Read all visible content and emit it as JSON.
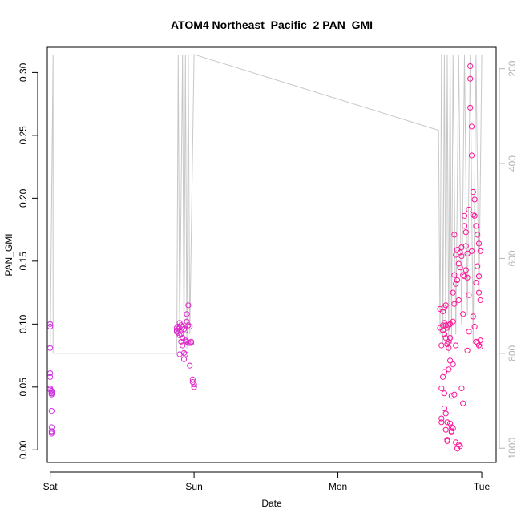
{
  "chart_data": {
    "type": "scatter",
    "title": "ATOM4 Northeast_Pacific_2 PAN_GMI",
    "xlabel": "Date",
    "ylabel": "PAN_GMI",
    "x_ticks": [
      "Sat",
      "Sun",
      "Mon",
      "Tue"
    ],
    "xlim_days": [
      -0.02,
      3.1
    ],
    "ylim": [
      -0.01,
      0.32
    ],
    "y_ticks": [
      0.0,
      0.05,
      0.1,
      0.15,
      0.2,
      0.25,
      0.3
    ],
    "y_tick_labels": [
      "0.00",
      "0.05",
      "0.10",
      "0.15",
      "0.20",
      "0.25",
      "0.30"
    ],
    "y2_ticks": [
      200,
      400,
      600,
      800,
      1000
    ],
    "y2_tick_labels": [
      "200",
      "400",
      "600",
      "800",
      "1000"
    ],
    "y2lim": [
      1030,
      155
    ],
    "grid": false,
    "colors": {
      "points_start": "#cc33dd",
      "points_end": "#ff1493",
      "pressure_line": "#c8c8c8",
      "axis": "#000000",
      "right_axis": "#b3b3b3"
    },
    "series": [
      {
        "values_x_days": [
          0.0,
          0.0,
          0.0,
          0.0,
          0.0,
          0.0,
          0.0,
          0.01,
          0.01,
          0.01,
          0.01,
          0.01,
          0.01,
          0.01,
          0.01,
          0.01,
          0.01,
          0.88,
          0.88,
          0.88,
          0.89,
          0.89,
          0.89,
          0.9,
          0.9,
          0.9,
          0.9,
          0.91,
          0.91,
          0.91,
          0.92,
          0.92,
          0.92,
          0.93,
          0.93,
          0.93,
          0.94,
          0.94,
          0.94,
          0.95,
          0.95,
          0.95,
          0.96,
          0.96,
          0.96,
          0.97,
          0.97,
          0.97,
          0.98,
          0.98,
          0.99,
          0.99,
          1.0,
          1.0
        ],
        "values_y": [
          0.1,
          0.098,
          0.081,
          0.061,
          0.058,
          0.049,
          0.048,
          0.047,
          0.046,
          0.045,
          0.045,
          0.044,
          0.031,
          0.018,
          0.015,
          0.013,
          0.014,
          0.097,
          0.095,
          0.094,
          0.098,
          0.096,
          0.093,
          0.101,
          0.097,
          0.091,
          0.076,
          0.099,
          0.092,
          0.086,
          0.098,
          0.089,
          0.083,
          0.096,
          0.077,
          0.072,
          0.095,
          0.087,
          0.076,
          0.108,
          0.102,
          0.086,
          0.115,
          0.099,
          0.085,
          0.098,
          0.085,
          0.067,
          0.085,
          0.086,
          0.056,
          0.054,
          0.052,
          0.05
        ]
      },
      {
        "values_x_days": [
          2.71,
          2.71,
          2.72,
          2.72,
          2.72,
          2.72,
          2.73,
          2.73,
          2.73,
          2.73,
          2.74,
          2.74,
          2.74,
          2.74,
          2.74,
          2.74,
          2.75,
          2.75,
          2.75,
          2.75,
          2.75,
          2.76,
          2.76,
          2.76,
          2.76,
          2.76,
          2.77,
          2.77,
          2.77,
          2.77,
          2.78,
          2.78,
          2.78,
          2.78,
          2.79,
          2.79,
          2.79,
          2.79,
          2.8,
          2.8,
          2.8,
          2.8,
          2.81,
          2.81,
          2.81,
          2.81,
          2.82,
          2.82,
          2.82,
          2.82,
          2.83,
          2.83,
          2.83,
          2.84,
          2.84,
          2.84,
          2.85,
          2.85,
          2.85,
          2.86,
          2.86,
          2.86,
          2.87,
          2.87,
          2.87,
          2.88,
          2.88,
          2.88,
          2.89,
          2.89,
          2.89,
          2.9,
          2.9,
          2.9,
          2.91,
          2.91,
          2.91,
          2.92,
          2.92,
          2.92,
          2.93,
          2.93,
          2.93,
          2.94,
          2.94,
          2.94,
          2.95,
          2.95,
          2.95,
          2.96,
          2.96,
          2.96,
          2.97,
          2.97,
          2.97,
          2.98,
          2.98,
          2.98,
          2.98,
          2.99,
          2.99,
          2.99,
          2.99
        ],
        "values_y": [
          0.112,
          0.097,
          0.083,
          0.049,
          0.025,
          0.022,
          0.11,
          0.099,
          0.095,
          0.058,
          0.113,
          0.101,
          0.092,
          0.062,
          0.045,
          0.033,
          0.115,
          0.099,
          0.089,
          0.029,
          0.016,
          0.097,
          0.084,
          0.022,
          0.008,
          0.007,
          0.099,
          0.086,
          0.081,
          0.064,
          0.1,
          0.089,
          0.071,
          0.021,
          0.043,
          0.018,
          0.014,
          0.015,
          0.125,
          0.102,
          0.068,
          0.017,
          0.171,
          0.139,
          0.116,
          0.044,
          0.155,
          0.132,
          0.083,
          0.006,
          0.159,
          0.135,
          0.001,
          0.148,
          0.119,
          0.004,
          0.157,
          0.145,
          0.003,
          0.161,
          0.154,
          0.049,
          0.139,
          0.108,
          0.037,
          0.186,
          0.178,
          0.138,
          0.173,
          0.162,
          0.143,
          0.156,
          0.137,
          0.079,
          0.191,
          0.123,
          0.094,
          0.305,
          0.295,
          0.272,
          0.257,
          0.234,
          0.158,
          0.205,
          0.187,
          0.106,
          0.199,
          0.186,
          0.098,
          0.178,
          0.133,
          0.086,
          0.171,
          0.146,
          0.085,
          0.164,
          0.138,
          0.125,
          0.083,
          0.158,
          0.119,
          0.087,
          0.082
        ]
      }
    ],
    "pressure_line": {
      "x_days": [
        0.0,
        0.01,
        0.02,
        0.02,
        0.88,
        0.89,
        0.9,
        0.92,
        0.93,
        0.94,
        0.95,
        0.96,
        0.97,
        1.0,
        2.7,
        2.71,
        2.72,
        2.73,
        2.74,
        2.75,
        2.76,
        2.77,
        2.78,
        2.79,
        2.8,
        2.82,
        2.84,
        2.86,
        2.88,
        2.9,
        2.92,
        2.94,
        2.96,
        2.98,
        3.0
      ],
      "y_hpa": [
        800,
        480,
        170,
        800,
        800,
        170,
        760,
        170,
        780,
        170,
        790,
        170,
        760,
        170,
        330,
        760,
        170,
        780,
        170,
        790,
        170,
        800,
        170,
        780,
        170,
        760,
        170,
        740,
        170,
        720,
        170,
        780,
        170,
        700,
        170
      ]
    }
  }
}
